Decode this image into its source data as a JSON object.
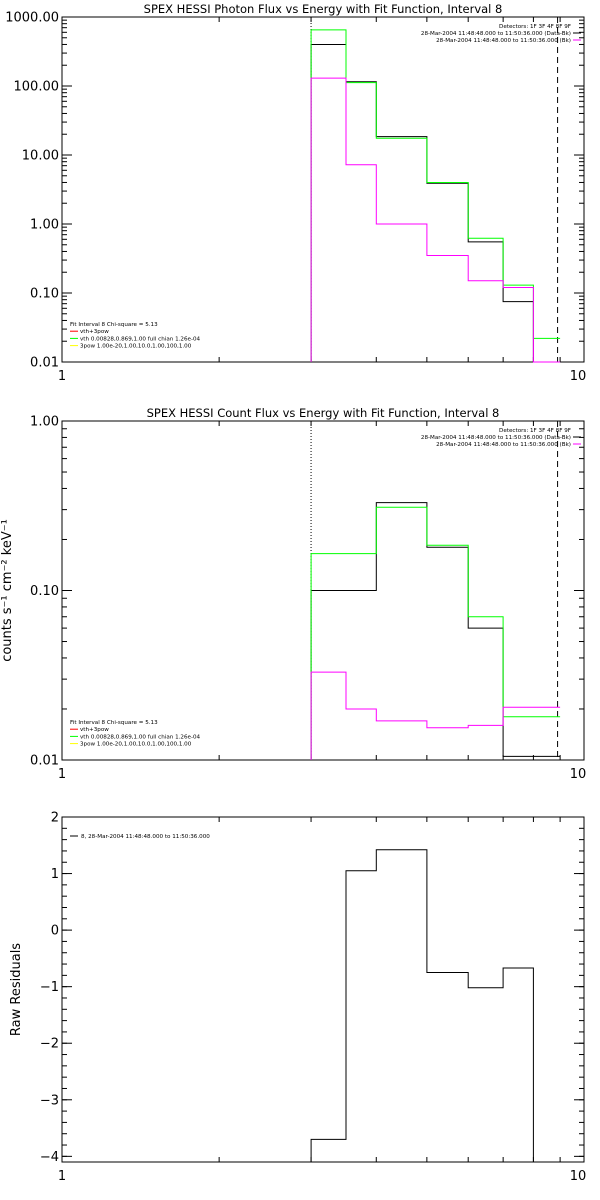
{
  "chart_data": [
    {
      "type": "line",
      "title": "SPEX HESSI Photon Flux vs Energy with Fit Function, Interval 8",
      "xlabel": "",
      "ylabel": "",
      "x_scale": "log",
      "y_scale": "log",
      "xlim": [
        1,
        10
      ],
      "ylim": [
        0.01,
        1000
      ],
      "x_ticks": [
        "1",
        "10"
      ],
      "y_ticks": [
        {
          "value": 0.01,
          "label": "0.01"
        },
        {
          "value": 0.1,
          "label": "0.10"
        },
        {
          "value": 1,
          "label": "1.00"
        },
        {
          "value": 10,
          "label": "10.00"
        },
        {
          "value": 100,
          "label": "100.00"
        },
        {
          "value": 1000,
          "label": "1000.00"
        }
      ],
      "vlines": [
        {
          "x": 3.0,
          "style": "dotted"
        },
        {
          "x": 8.9,
          "style": "dashed"
        }
      ],
      "legend_topright": [
        {
          "text": "Detectors: 1F 3F 4F 8F 9F",
          "color": ""
        },
        {
          "text": "28-Mar-2004 11:48:48.000 to 11:50:36.000 (Data-Bk)",
          "color": "#000000"
        },
        {
          "text": "28-Mar-2004 11:48:48.000 to 11:50:36.000 (Bk)",
          "color": "#ff00ff"
        }
      ],
      "legend_bottomleft": [
        {
          "text": "Fit Interval 8   Chi-square = 5.13",
          "color": ""
        },
        {
          "text": "vth+3pow",
          "color": "#ff0000"
        },
        {
          "text": "vth 0.00828,0.869,1.00  full chian 1.26e-04",
          "color": "#00ff00"
        },
        {
          "text": "3pow 1.00e-20,1.00,10.0,1.00,100,1.00",
          "color": "#ffff00"
        }
      ],
      "edges": [
        3.0,
        3.5,
        4.0,
        5.0,
        6.0,
        7.0,
        8.0,
        9.0
      ],
      "series": [
        {
          "name": "Data-Bk",
          "color": "#000000",
          "values": [
            400,
            115,
            18.5,
            3.9,
            0.55,
            0.075,
            0.008
          ]
        },
        {
          "name": "Fit",
          "color": "#00ff00",
          "values": [
            650,
            112,
            17.5,
            4.0,
            0.62,
            0.13,
            0.022
          ]
        },
        {
          "name": "Bk",
          "color": "#ff00ff",
          "values": [
            130,
            7.2,
            1.0,
            0.35,
            0.15,
            0.12,
            0.005
          ]
        }
      ]
    },
    {
      "type": "line",
      "title": "SPEX HESSI Count Flux vs Energy with Fit Function, Interval 8",
      "xlabel": "",
      "ylabel": "counts s⁻¹ cm⁻² keV⁻¹",
      "x_scale": "log",
      "y_scale": "log",
      "xlim": [
        1,
        10
      ],
      "ylim": [
        0.01,
        1.0
      ],
      "x_ticks": [
        "1",
        "10"
      ],
      "y_ticks": [
        {
          "value": 0.01,
          "label": "0.01"
        },
        {
          "value": 0.1,
          "label": "0.10"
        },
        {
          "value": 1,
          "label": "1.00"
        }
      ],
      "vlines": [
        {
          "x": 3.0,
          "style": "dotted"
        },
        {
          "x": 8.9,
          "style": "dashed"
        }
      ],
      "legend_topright": [
        {
          "text": "Detectors: 1F 3F 4F 8F 9F",
          "color": ""
        },
        {
          "text": "28-Mar-2004 11:48:48.000 to 11:50:36.000 (Data-Bk)",
          "color": "#000000"
        },
        {
          "text": "28-Mar-2004 11:48:48.000 to 11:50:36.000 (Bk)",
          "color": "#ff00ff"
        }
      ],
      "legend_bottomleft": [
        {
          "text": "Fit Interval 8   Chi-square = 5.13",
          "color": ""
        },
        {
          "text": "vth+3pow",
          "color": "#ff0000"
        },
        {
          "text": "vth 0.00828,0.869,1.00  full chian 1.26e-04",
          "color": "#00ff00"
        },
        {
          "text": "3pow 1.00e-20,1.00,10.0,1.00,100,1.00",
          "color": "#ffff00"
        }
      ],
      "edges": [
        3.0,
        3.5,
        4.0,
        5.0,
        6.0,
        7.0,
        8.0,
        9.0
      ],
      "series": [
        {
          "name": "Data-Bk",
          "color": "#000000",
          "values": [
            0.1,
            0.1,
            0.33,
            0.18,
            0.06,
            0.0105,
            0.0105
          ]
        },
        {
          "name": "Fit",
          "color": "#00ff00",
          "values": [
            0.165,
            0.165,
            0.31,
            0.185,
            0.07,
            0.018,
            0.018
          ]
        },
        {
          "name": "Bk",
          "color": "#ff00ff",
          "values": [
            0.033,
            0.02,
            0.017,
            0.0155,
            0.016,
            0.0205,
            0.0205
          ]
        }
      ]
    },
    {
      "type": "line",
      "title": "",
      "xlabel": "",
      "ylabel": "Raw Residuals",
      "x_scale": "log",
      "y_scale": "linear",
      "xlim": [
        1,
        10
      ],
      "ylim": [
        -4.1,
        2.0
      ],
      "x_ticks": [
        "1",
        "10"
      ],
      "y_ticks": [
        {
          "value": 2,
          "label": "2"
        },
        {
          "value": 1,
          "label": "1"
        },
        {
          "value": 0,
          "label": "0"
        },
        {
          "value": -1,
          "label": "−1"
        },
        {
          "value": -2,
          "label": "−2"
        },
        {
          "value": -3,
          "label": "−3"
        },
        {
          "value": -4,
          "label": "−4"
        }
      ],
      "vlines": [],
      "legend_topleft": [
        {
          "text": "8, 28-Mar-2004 11:48:48.000 to 11:50:36.000",
          "color": "#000000"
        }
      ],
      "edges": [
        3.0,
        3.5,
        4.0,
        5.0,
        6.0,
        7.0,
        8.0,
        9.0
      ],
      "series": [
        {
          "name": "8, 28-Mar-2004 11:48:48.000 to 11:50:36.000",
          "color": "#000000",
          "values": [
            -3.7,
            1.05,
            1.42,
            -0.75,
            -1.02,
            -0.67,
            -4.1
          ]
        }
      ]
    }
  ]
}
